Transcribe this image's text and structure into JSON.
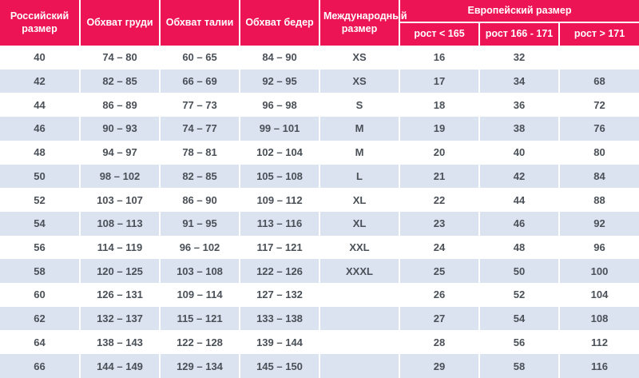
{
  "chart_data": {
    "type": "table",
    "headers": {
      "russian_size": "Российский размер",
      "chest": "Обхват груди",
      "waist": "Обхват талии",
      "hips": "Обхват бедер",
      "international_size": "Международный размер",
      "european_size": "Европейский размер",
      "height_lt_165": "рост < 165",
      "height_166_171": "рост 166 - 171",
      "height_gt_171": "рост > 171"
    },
    "rows": [
      [
        "40",
        "74 – 80",
        "60 – 65",
        "84 – 90",
        "XS",
        "16",
        "32",
        ""
      ],
      [
        "42",
        "82 – 85",
        "66 – 69",
        "92 – 95",
        "XS",
        "17",
        "34",
        "68"
      ],
      [
        "44",
        "86 – 89",
        "77 – 73",
        "96 – 98",
        "S",
        "18",
        "36",
        "72"
      ],
      [
        "46",
        "90 – 93",
        "74 – 77",
        "99 – 101",
        "M",
        "19",
        "38",
        "76"
      ],
      [
        "48",
        "94 – 97",
        "78 – 81",
        "102 – 104",
        "M",
        "20",
        "40",
        "80"
      ],
      [
        "50",
        "98 – 102",
        "82 – 85",
        "105 – 108",
        "L",
        "21",
        "42",
        "84"
      ],
      [
        "52",
        "103 – 107",
        "86 – 90",
        "109 – 112",
        "XL",
        "22",
        "44",
        "88"
      ],
      [
        "54",
        "108 – 113",
        "91 – 95",
        "113 – 116",
        "XL",
        "23",
        "46",
        "92"
      ],
      [
        "56",
        "114 – 119",
        "96 – 102",
        "117 – 121",
        "XXL",
        "24",
        "48",
        "96"
      ],
      [
        "58",
        "120 – 125",
        "103 – 108",
        "122 – 126",
        "XXXL",
        "25",
        "50",
        "100"
      ],
      [
        "60",
        "126 – 131",
        "109 – 114",
        "127 – 132",
        "",
        "26",
        "52",
        "104"
      ],
      [
        "62",
        "132 – 137",
        "115 – 121",
        "133 – 138",
        "",
        "27",
        "54",
        "108"
      ],
      [
        "64",
        "138 – 143",
        "122 – 128",
        "139 – 144",
        "",
        "28",
        "56",
        "112"
      ],
      [
        "66",
        "144 – 149",
        "129 – 134",
        "145 – 150",
        "",
        "29",
        "58",
        "116"
      ]
    ],
    "layout": {
      "columns": 8,
      "grid": "alternating-row-stripes",
      "legend_position": "none"
    }
  },
  "colors": {
    "header_bg": "#ed1456",
    "stripe_bg": "#dbe3f0",
    "row_bg": "#ffffff",
    "header_text": "#ffffff",
    "body_text": "#4a5057"
  }
}
